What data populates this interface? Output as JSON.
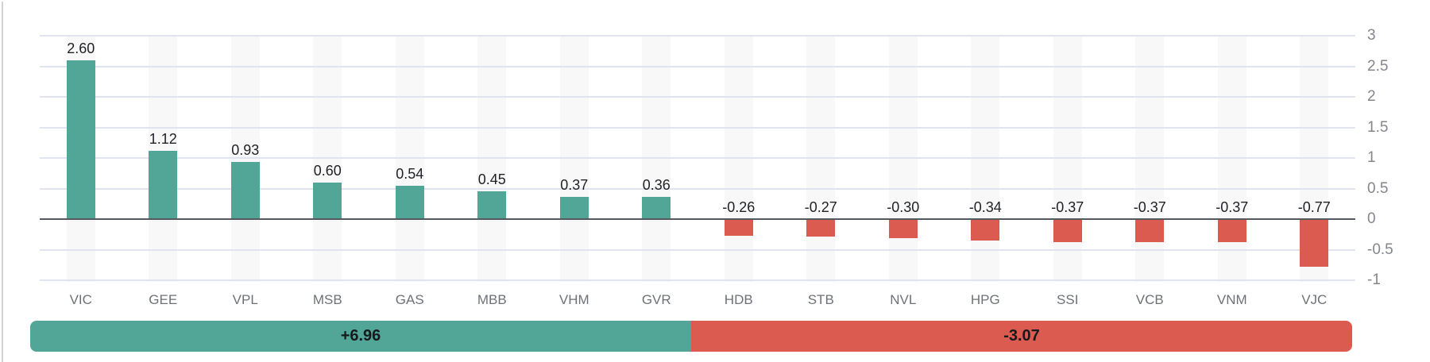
{
  "chart_data": {
    "type": "bar",
    "title": "",
    "categories": [
      "VIC",
      "GEE",
      "VPL",
      "MSB",
      "GAS",
      "MBB",
      "VHM",
      "GVR",
      "HDB",
      "STB",
      "NVL",
      "HPG",
      "SSI",
      "VCB",
      "VNM",
      "VJC"
    ],
    "values": [
      2.6,
      1.12,
      0.93,
      0.6,
      0.54,
      0.45,
      0.37,
      0.36,
      -0.26,
      -0.27,
      -0.3,
      -0.34,
      -0.37,
      -0.37,
      -0.37,
      -0.77
    ],
    "value_labels": [
      "2.60",
      "1.12",
      "0.93",
      "0.60",
      "0.54",
      "0.45",
      "0.37",
      "0.36",
      "-0.26",
      "-0.27",
      "-0.30",
      "-0.34",
      "-0.37",
      "-0.37",
      "-0.37",
      "-0.77"
    ],
    "xlabel": "",
    "ylabel": "",
    "y_axis": {
      "position": "right",
      "min": -1,
      "max": 3,
      "ticks": [
        3,
        2.5,
        2,
        1.5,
        1,
        0.5,
        0,
        -0.5,
        -1
      ],
      "tick_labels": [
        "3",
        "2.5",
        "2",
        "1.5",
        "1",
        "0.5",
        "0",
        "-0.5",
        "-1"
      ],
      "grid": true
    },
    "colors": {
      "positive": "#52a698",
      "negative": "#dc5b51",
      "gridline": "#e1e4ee",
      "zero_line": "#55585c",
      "column_band": "#f8f8f9"
    },
    "summary": {
      "positive_label": "+6.96",
      "negative_label": "-3.07"
    },
    "legend": []
  }
}
